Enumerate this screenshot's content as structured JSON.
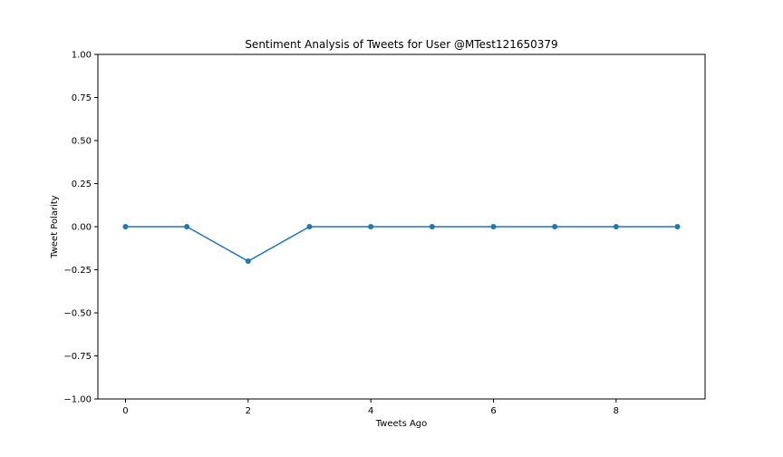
{
  "chart_data": {
    "type": "line",
    "title": "Sentiment Analysis of Tweets for User @MTest121650379",
    "xlabel": "Tweets Ago",
    "ylabel": "Tweet Polarity",
    "xlim": [
      -0.45,
      9.45
    ],
    "ylim": [
      -1.0,
      1.0
    ],
    "xticks": [
      0,
      2,
      4,
      6,
      8
    ],
    "xtick_labels": [
      "0",
      "2",
      "4",
      "6",
      "8"
    ],
    "yticks": [
      -1.0,
      -0.75,
      -0.5,
      -0.25,
      0.0,
      0.25,
      0.5,
      0.75,
      1.0
    ],
    "ytick_labels": [
      "−1.00",
      "−0.75",
      "−0.50",
      "−0.25",
      "0.00",
      "0.25",
      "0.50",
      "0.75",
      "1.00"
    ],
    "grid": false,
    "series": [
      {
        "x": [
          0,
          1,
          2,
          3,
          4,
          5,
          6,
          7,
          8,
          9
        ],
        "values": [
          0,
          0,
          -0.2,
          0,
          0,
          0,
          0,
          0,
          0,
          0
        ],
        "color": "#1f77b4",
        "marker": "circle"
      }
    ]
  }
}
